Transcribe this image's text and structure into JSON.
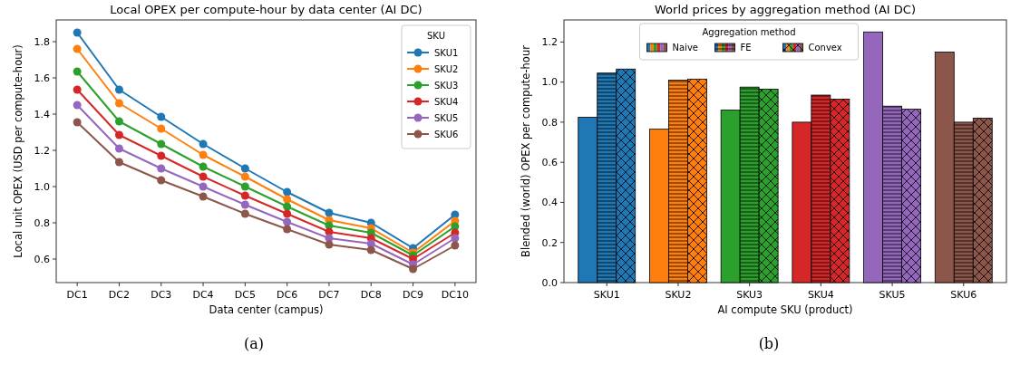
{
  "chart_data": [
    {
      "type": "line",
      "title": "Local OPEX per compute-hour by data center (AI DC)",
      "xlabel": "Data center (campus)",
      "ylabel": "Local unit OPEX (USD per compute-hour)",
      "categories": [
        "DC1",
        "DC2",
        "DC3",
        "DC4",
        "DC5",
        "DC6",
        "DC7",
        "DC8",
        "DC9",
        "DC10"
      ],
      "series": [
        {
          "name": "SKU1",
          "color": "#1f77b4",
          "values": [
            1.85,
            1.535,
            1.385,
            1.235,
            1.1,
            0.97,
            0.855,
            0.8,
            0.66,
            0.845
          ]
        },
        {
          "name": "SKU2",
          "color": "#ff7f0e",
          "values": [
            1.76,
            1.46,
            1.32,
            1.175,
            1.055,
            0.93,
            0.815,
            0.77,
            0.635,
            0.81
          ]
        },
        {
          "name": "SKU3",
          "color": "#2ca02c",
          "values": [
            1.635,
            1.36,
            1.235,
            1.11,
            1.0,
            0.89,
            0.785,
            0.745,
            0.62,
            0.78
          ]
        },
        {
          "name": "SKU4",
          "color": "#d62728",
          "values": [
            1.535,
            1.285,
            1.17,
            1.055,
            0.95,
            0.85,
            0.75,
            0.715,
            0.6,
            0.745
          ]
        },
        {
          "name": "SKU5",
          "color": "#9467bd",
          "values": [
            1.45,
            1.21,
            1.1,
            1.0,
            0.9,
            0.805,
            0.715,
            0.685,
            0.57,
            0.715
          ]
        },
        {
          "name": "SKU6",
          "color": "#8c564b",
          "values": [
            1.355,
            1.135,
            1.035,
            0.945,
            0.85,
            0.765,
            0.68,
            0.65,
            0.545,
            0.675
          ]
        }
      ],
      "ylim": [
        0.47,
        1.92
      ],
      "yticks": [
        {
          "value": 0.6,
          "label": "0.6"
        },
        {
          "value": 0.8,
          "label": "0.8"
        },
        {
          "value": 1.0,
          "label": "1.0"
        },
        {
          "value": 1.2,
          "label": "1.2"
        },
        {
          "value": 1.4,
          "label": "1.4"
        },
        {
          "value": 1.6,
          "label": "1.6"
        },
        {
          "value": 1.8,
          "label": "1.8"
        }
      ],
      "marker": "circle",
      "line_style": "solid",
      "legend": "top right",
      "legend_title": "SKU",
      "grid": false,
      "annotations": [
        "(a)"
      ]
    },
    {
      "type": "bar",
      "title": "World prices by aggregation method (AI DC)",
      "xlabel": "AI compute SKU (product)",
      "ylabel": "Blended (world) OPEX per compute-hour",
      "categories": [
        "SKU1",
        "SKU2",
        "SKU3",
        "SKU4",
        "SKU5",
        "SKU6"
      ],
      "series": [
        {
          "name": "Naive",
          "colors": [
            "#1f77b4",
            "#ff7f0e",
            "#2ca02c",
            "#d62728",
            "#9467bd",
            "#8c564b"
          ],
          "values": [
            0.825,
            0.765,
            0.86,
            0.8,
            1.25,
            1.15
          ]
        },
        {
          "name": "FE",
          "colors": [
            "#1f77b4",
            "#ff7f0e",
            "#2ca02c",
            "#d62728",
            "#9467bd",
            "#8c564b"
          ],
          "values": [
            1.045,
            1.01,
            0.975,
            0.935,
            0.88,
            0.8
          ]
        },
        {
          "name": "Convex",
          "colors": [
            "#1f77b4",
            "#ff7f0e",
            "#2ca02c",
            "#d62728",
            "#9467bd",
            "#8c564b"
          ],
          "values": [
            1.065,
            1.015,
            0.965,
            0.915,
            0.865,
            0.82
          ]
        }
      ],
      "ylim": [
        0,
        1.31
      ],
      "yticks": [
        {
          "value": 0,
          "label": "0.0"
        },
        {
          "value": 0.2,
          "label": "0.2"
        },
        {
          "value": 0.4,
          "label": "0.4"
        },
        {
          "value": 0.6,
          "label": "0.6"
        },
        {
          "value": 0.8,
          "label": "0.8"
        },
        {
          "value": 1.0,
          "label": "1.0"
        },
        {
          "value": 1.2,
          "label": "1.2"
        }
      ],
      "legend": "top",
      "legend_title": "Aggregation method",
      "grid": false,
      "annotations": [
        "(b)"
      ]
    }
  ]
}
